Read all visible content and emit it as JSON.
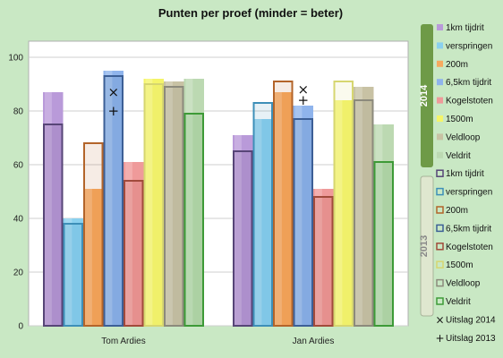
{
  "chart_data": {
    "type": "bar",
    "title": "Punten per proef (minder = beter)",
    "categories": [
      "Tom Ardies",
      "Jan Ardies"
    ],
    "ylim": [
      0,
      100
    ],
    "yticks": [
      0,
      20,
      40,
      60,
      80,
      100
    ],
    "grid": true,
    "legend_position": "right",
    "series_2014": [
      {
        "name": "1km tijdrit",
        "color": "#b99ad9",
        "values": [
          87,
          71
        ]
      },
      {
        "name": "verspringen",
        "color": "#8ad0ee",
        "values": [
          40,
          77
        ]
      },
      {
        "name": "200m",
        "color": "#f7a95e",
        "values": [
          51,
          87
        ]
      },
      {
        "name": "6,5km tijdrit",
        "color": "#8fb4ec",
        "values": [
          95,
          82
        ]
      },
      {
        "name": "Kogelstoten",
        "color": "#ef9a9a",
        "values": [
          61,
          51
        ]
      },
      {
        "name": "1500m",
        "color": "#f4f469",
        "values": [
          92,
          84
        ]
      },
      {
        "name": "Veldloop",
        "color": "#c8c2a4",
        "values": [
          91,
          89
        ]
      },
      {
        "name": "Veldrit",
        "color": "#bcd9b2",
        "values": [
          92,
          75
        ]
      }
    ],
    "series_2013": [
      {
        "name": "1km tijdrit",
        "color": "#574577",
        "values": [
          75,
          65
        ]
      },
      {
        "name": "verspringen",
        "color": "#3d8fb8",
        "values": [
          38,
          83
        ]
      },
      {
        "name": "200m",
        "color": "#b3642a",
        "values": [
          68,
          91
        ]
      },
      {
        "name": "6,5km tijdrit",
        "color": "#3c5f96",
        "values": [
          93,
          77
        ]
      },
      {
        "name": "Kogelstoten",
        "color": "#a14a3b",
        "values": [
          54,
          48
        ]
      },
      {
        "name": "1500m",
        "color": "#d6d670",
        "values": [
          90,
          91
        ]
      },
      {
        "name": "Veldloop",
        "color": "#8c8a7c",
        "values": [
          89,
          84
        ]
      },
      {
        "name": "Veldrit",
        "color": "#3d9a37",
        "values": [
          79,
          61
        ]
      }
    ],
    "markers": [
      {
        "name": "Uitslag 2014",
        "symbol": "×",
        "values": [
          87,
          88
        ]
      },
      {
        "name": "Uitslag 2013",
        "symbol": "+",
        "values": [
          80,
          84
        ]
      }
    ],
    "legend_groups": [
      {
        "label": "2014",
        "color": "#6e9a47",
        "text_color": "#ffffff"
      },
      {
        "label": "2013",
        "color": "#dfe7cf",
        "text_color": "#888888"
      }
    ]
  }
}
